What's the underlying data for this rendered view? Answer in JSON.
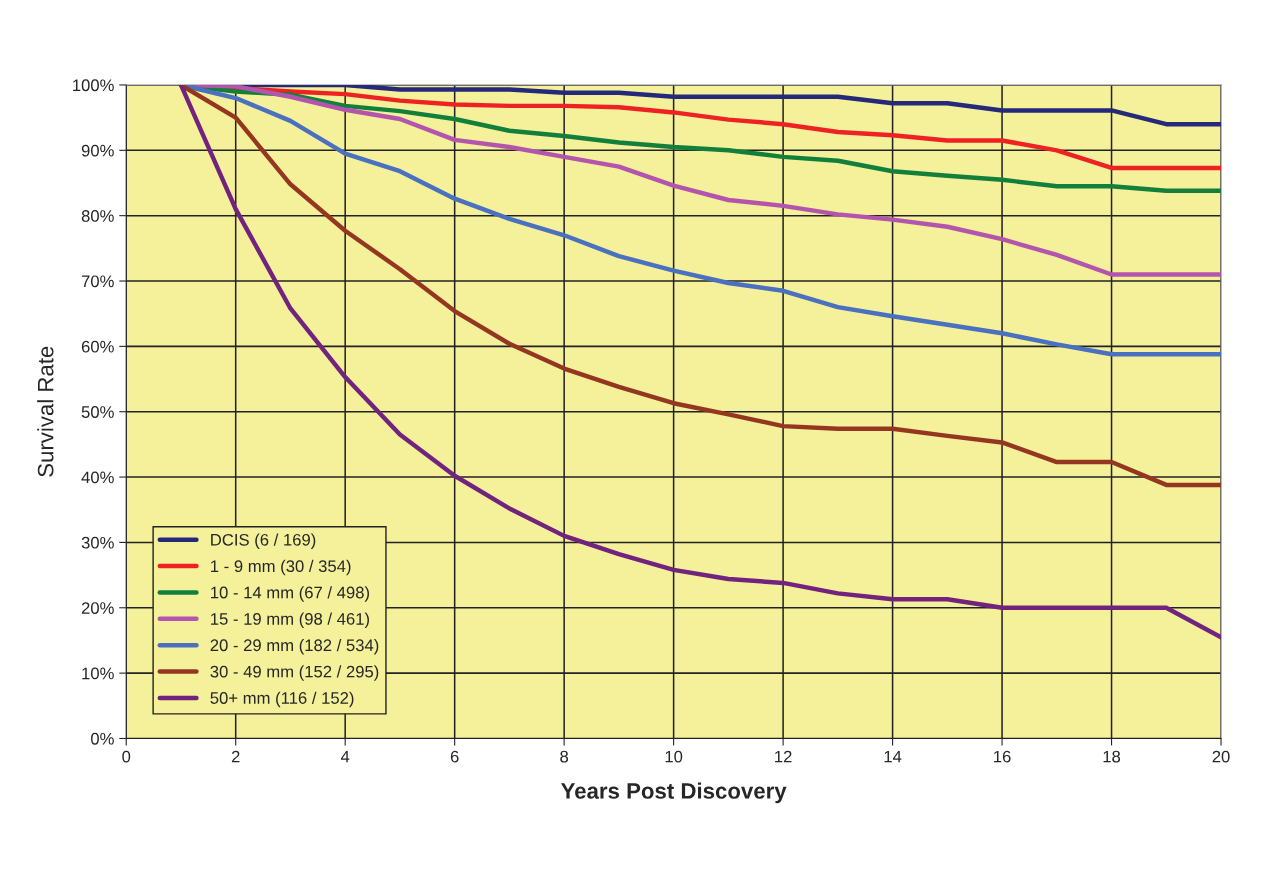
{
  "chart_data": {
    "type": "line",
    "xlabel": "Years Post Discovery",
    "ylabel": "Survival Rate",
    "x": [
      1,
      2,
      3,
      4,
      5,
      6,
      7,
      8,
      9,
      10,
      11,
      12,
      13,
      14,
      15,
      16,
      17,
      18,
      19,
      20
    ],
    "xlim": [
      0,
      20
    ],
    "xticks": [
      0,
      2,
      4,
      6,
      8,
      10,
      12,
      14,
      16,
      18,
      20
    ],
    "ylim": [
      0,
      100
    ],
    "yticks": [
      {
        "value": 0,
        "label": "0%"
      },
      {
        "value": 10,
        "label": "10%"
      },
      {
        "value": 20,
        "label": "20%"
      },
      {
        "value": 30,
        "label": "30%"
      },
      {
        "value": 40,
        "label": "40%"
      },
      {
        "value": 50,
        "label": "50%"
      },
      {
        "value": 60,
        "label": "60%"
      },
      {
        "value": 70,
        "label": "70%"
      },
      {
        "value": 80,
        "label": "80%"
      },
      {
        "value": 90,
        "label": "90%"
      },
      {
        "value": 100,
        "label": "100%"
      }
    ],
    "grid": true,
    "legend": "bottom left",
    "marker": "none",
    "line_style": "solid",
    "series": [
      {
        "name": "DCIS (6 / 169)",
        "color": "#26287a",
        "values": [
          100,
          100,
          100,
          100,
          99.3,
          99.3,
          99.3,
          98.8,
          98.8,
          98.2,
          98.2,
          98.2,
          98.2,
          97.2,
          97.2,
          96.1,
          96.1,
          96.1,
          94,
          94
        ]
      },
      {
        "name": "1 - 9 mm (30 / 354)",
        "color": "#ee2222",
        "values": [
          100,
          99.5,
          99,
          98.6,
          97.6,
          97,
          96.8,
          96.8,
          96.6,
          95.8,
          94.7,
          94,
          92.8,
          92.3,
          91.5,
          91.5,
          90,
          87.3,
          87.3,
          87.3
        ]
      },
      {
        "name": "10 - 14 mm (67 / 498)",
        "color": "#12803a",
        "values": [
          100,
          99,
          98.5,
          96.8,
          96,
          94.8,
          93,
          92.2,
          91.2,
          90.5,
          90,
          89,
          88.4,
          86.8,
          86.1,
          85.5,
          84.5,
          84.5,
          83.8,
          83.8
        ]
      },
      {
        "name": "15 - 19 mm (98 / 461)",
        "color": "#b455ad",
        "values": [
          100,
          99.8,
          98.2,
          96.2,
          94.8,
          91.6,
          90.5,
          89,
          87.5,
          84.6,
          82.4,
          81.5,
          80.2,
          79.4,
          78.3,
          76.4,
          74,
          71,
          71,
          71
        ]
      },
      {
        "name": "20 - 29 mm (182 / 534)",
        "color": "#4a70c0",
        "values": [
          100,
          98,
          94.5,
          89.5,
          86.8,
          82.6,
          79.5,
          77,
          73.8,
          71.6,
          69.7,
          68.5,
          66,
          64.6,
          63.3,
          62,
          60.3,
          58.8,
          58.8,
          58.8
        ]
      },
      {
        "name": "30 - 49 mm (152 / 295)",
        "color": "#953720",
        "values": [
          100,
          95,
          84.8,
          77.7,
          71.8,
          65.4,
          60.4,
          56.6,
          53.8,
          51.3,
          49.6,
          47.8,
          47.4,
          47.4,
          46.3,
          45.3,
          42.3,
          42.3,
          38.8,
          38.8
        ]
      },
      {
        "name": "50+ mm (116 / 152)",
        "color": "#72237e",
        "values": [
          100,
          81,
          65.8,
          55.3,
          46.5,
          40.2,
          35.2,
          31,
          28.2,
          25.8,
          24.4,
          23.8,
          22.2,
          21.3,
          21.3,
          20,
          20,
          20,
          20,
          15.5
        ]
      }
    ]
  }
}
